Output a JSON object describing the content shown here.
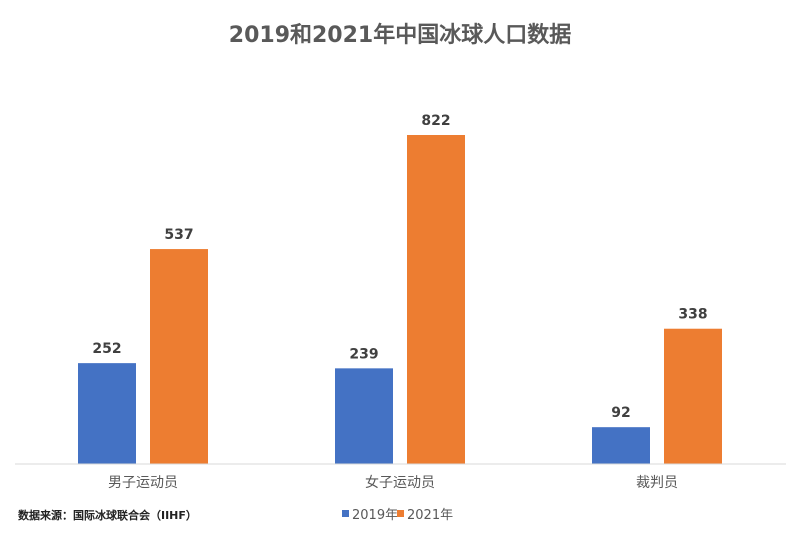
{
  "chart_data": {
    "type": "bar",
    "title": "2019和2021年中国冰球人口数据",
    "categories": [
      "男子运动员",
      "女子运动员",
      "裁判员"
    ],
    "series": [
      {
        "name": "2019年",
        "values": [
          252,
          239,
          92
        ],
        "color": "#4472C4"
      },
      {
        "name": "2021年",
        "values": [
          537,
          822,
          338
        ],
        "color": "#ED7D31"
      }
    ],
    "xlabel": "",
    "ylabel": "",
    "ylim": [
      0,
      900
    ],
    "grid": false,
    "legend_position": "bottom",
    "data_labels": true,
    "source": "数据来源：国际冰球联合会（IIHF）"
  }
}
